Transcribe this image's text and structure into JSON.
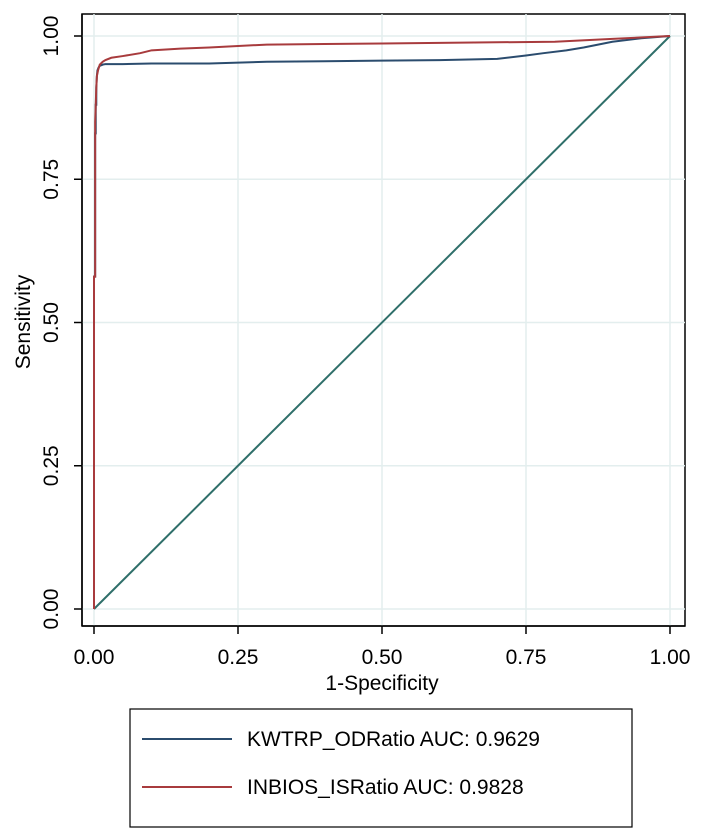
{
  "chart_data": {
    "type": "line",
    "title": "",
    "xlabel": "1-Specificity",
    "ylabel": "Sensitivity",
    "xlim": [
      0,
      1
    ],
    "ylim": [
      0,
      1
    ],
    "xticks": [
      "0.00",
      "0.25",
      "0.50",
      "0.75",
      "1.00"
    ],
    "yticks": [
      "0.00",
      "0.25",
      "0.50",
      "0.75",
      "1.00"
    ],
    "grid": true,
    "legend_position": "bottom",
    "series": [
      {
        "name": "KWTRP_ODRatio AUC: 0.9629",
        "color": "#2b4c6e",
        "x": [
          0,
          0,
          0.002,
          0.002,
          0.003,
          0.003,
          0.004,
          0.004,
          0.005,
          0.006,
          0.008,
          0.01,
          0.015,
          0.02,
          0.05,
          0.1,
          0.2,
          0.3,
          0.4,
          0.5,
          0.6,
          0.7,
          0.75,
          0.78,
          0.82,
          0.85,
          0.9,
          0.95,
          1.0
        ],
        "y": [
          0,
          0.58,
          0.58,
          0.83,
          0.83,
          0.88,
          0.88,
          0.91,
          0.93,
          0.94,
          0.945,
          0.948,
          0.95,
          0.951,
          0.951,
          0.952,
          0.952,
          0.955,
          0.956,
          0.957,
          0.958,
          0.96,
          0.966,
          0.97,
          0.975,
          0.98,
          0.99,
          0.996,
          1.0
        ]
      },
      {
        "name": "INBIOS_ISRatio AUC: 0.9828",
        "color": "#a83b3d",
        "x": [
          0,
          0,
          0.002,
          0.002,
          0.003,
          0.004,
          0.005,
          0.007,
          0.01,
          0.015,
          0.02,
          0.03,
          0.05,
          0.08,
          0.1,
          0.15,
          0.2,
          0.3,
          0.4,
          0.5,
          0.6,
          0.7,
          0.8,
          0.9,
          1.0
        ],
        "y": [
          0,
          0.58,
          0.58,
          0.85,
          0.88,
          0.91,
          0.93,
          0.94,
          0.95,
          0.955,
          0.958,
          0.962,
          0.965,
          0.97,
          0.975,
          0.978,
          0.98,
          0.985,
          0.986,
          0.987,
          0.988,
          0.989,
          0.99,
          0.995,
          1.0
        ]
      },
      {
        "name": "reference",
        "color": "#2f6f6a",
        "x": [
          0,
          1
        ],
        "y": [
          0,
          1
        ]
      }
    ]
  }
}
